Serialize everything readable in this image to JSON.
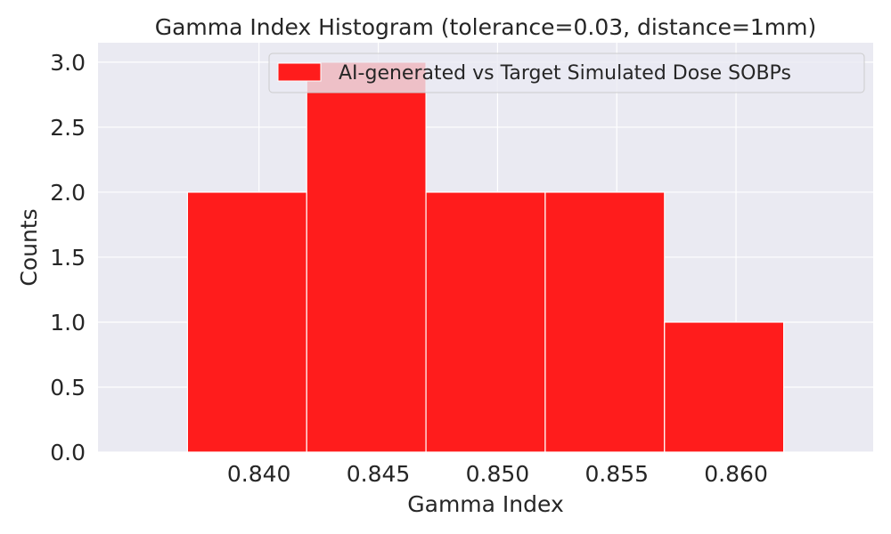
{
  "chart_data": {
    "type": "bar",
    "title": "Gamma Index Histogram (tolerance=0.03, distance=1mm)",
    "xlabel": "Gamma Index",
    "ylabel": "Counts",
    "xlim": [
      0.83325,
      0.86575
    ],
    "ylim": [
      0,
      3.15
    ],
    "xticks": [
      0.84,
      0.845,
      0.85,
      0.855,
      0.86
    ],
    "xtick_labels": [
      "0.840",
      "0.845",
      "0.850",
      "0.855",
      "0.860"
    ],
    "yticks": [
      0.0,
      0.5,
      1.0,
      1.5,
      2.0,
      2.5,
      3.0
    ],
    "ytick_labels": [
      "0.0",
      "0.5",
      "1.0",
      "1.5",
      "2.0",
      "2.5",
      "3.0"
    ],
    "bins": [
      {
        "x0": 0.837,
        "x1": 0.842,
        "count": 2
      },
      {
        "x0": 0.842,
        "x1": 0.847,
        "count": 3
      },
      {
        "x0": 0.847,
        "x1": 0.852,
        "count": 2
      },
      {
        "x0": 0.852,
        "x1": 0.857,
        "count": 2
      },
      {
        "x0": 0.857,
        "x1": 0.862,
        "count": 1
      }
    ],
    "series": [
      {
        "name": "AI-generated vs Target Simulated Dose SOBPs",
        "color": "#ff1c1c"
      }
    ],
    "legend": "top-right",
    "grid": true,
    "style": {
      "background": "#eaeaf2",
      "grid_color": "#ffffff",
      "bar_color": "#ff1c1c",
      "bar_edge": "#ffffff"
    }
  }
}
